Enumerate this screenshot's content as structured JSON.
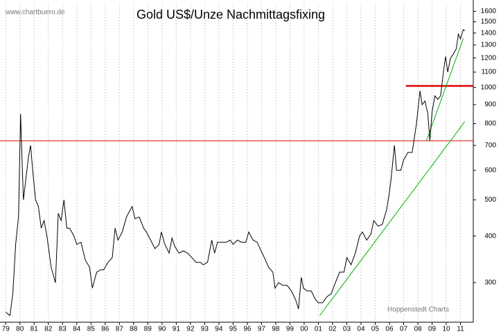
{
  "chart_data": {
    "type": "line",
    "title": "Gold US$/Unze Nachmittagsfixing",
    "source": "www.chartbuero.de",
    "credit": "Hoppenstedt Charts",
    "log_scale": true,
    "grid": true,
    "color": "#000000",
    "x": [
      1979.0,
      1979.3,
      1979.5,
      1979.7,
      1979.9,
      1980.05,
      1980.15,
      1980.25,
      1980.4,
      1980.6,
      1980.75,
      1980.9,
      1981.1,
      1981.3,
      1981.5,
      1981.7,
      1981.9,
      1982.2,
      1982.5,
      1982.7,
      1982.9,
      1983.1,
      1983.3,
      1983.5,
      1983.8,
      1984.0,
      1984.3,
      1984.6,
      1984.9,
      1985.1,
      1985.4,
      1985.7,
      1985.9,
      1986.2,
      1986.5,
      1986.7,
      1986.9,
      1987.2,
      1987.5,
      1987.9,
      1988.1,
      1988.4,
      1988.7,
      1988.9,
      1989.2,
      1989.5,
      1989.8,
      1989.95,
      1990.2,
      1990.5,
      1990.7,
      1990.9,
      1991.2,
      1991.5,
      1991.8,
      1992.1,
      1992.4,
      1992.7,
      1992.9,
      1993.2,
      1993.5,
      1993.7,
      1993.9,
      1994.2,
      1994.5,
      1994.8,
      1995.0,
      1995.3,
      1995.6,
      1995.9,
      1996.1,
      1996.4,
      1996.7,
      1996.9,
      1997.2,
      1997.5,
      1997.8,
      1997.95,
      1998.2,
      1998.5,
      1998.8,
      1999.1,
      1999.4,
      1999.6,
      1999.8,
      1999.95,
      2000.2,
      2000.5,
      2000.8,
      2001.0,
      2001.3,
      2001.6,
      2001.9,
      2002.2,
      2002.5,
      2002.8,
      2003.0,
      2003.3,
      2003.6,
      2003.9,
      2004.1,
      2004.4,
      2004.7,
      2004.9,
      2005.2,
      2005.5,
      2005.8,
      2005.95,
      2006.1,
      2006.35,
      2006.5,
      2006.8,
      2007.0,
      2007.3,
      2007.6,
      2007.9,
      2008.15,
      2008.3,
      2008.5,
      2008.7,
      2008.85,
      2009.0,
      2009.2,
      2009.4,
      2009.6,
      2009.8,
      2009.95,
      2010.1,
      2010.3,
      2010.5,
      2010.7,
      2010.85,
      2011.0,
      2011.2,
      2011.3
    ],
    "values": [
      250,
      245,
      280,
      380,
      450,
      850,
      640,
      500,
      560,
      650,
      700,
      600,
      500,
      480,
      420,
      440,
      400,
      330,
      300,
      460,
      440,
      500,
      420,
      420,
      400,
      380,
      385,
      345,
      330,
      290,
      320,
      325,
      325,
      340,
      350,
      420,
      390,
      410,
      450,
      480,
      445,
      450,
      420,
      410,
      390,
      370,
      380,
      410,
      380,
      360,
      395,
      375,
      360,
      365,
      360,
      350,
      340,
      340,
      335,
      340,
      390,
      360,
      385,
      385,
      385,
      390,
      380,
      390,
      385,
      385,
      410,
      390,
      385,
      370,
      350,
      330,
      320,
      290,
      300,
      295,
      295,
      285,
      270,
      255,
      310,
      290,
      285,
      285,
      270,
      265,
      265,
      275,
      280,
      300,
      320,
      320,
      350,
      335,
      360,
      400,
      410,
      390,
      405,
      440,
      425,
      430,
      470,
      510,
      560,
      700,
      600,
      600,
      640,
      670,
      670,
      800,
      980,
      900,
      920,
      850,
      720,
      860,
      950,
      930,
      950,
      1100,
      1210,
      1100,
      1200,
      1230,
      1270,
      1390,
      1350,
      1430,
      1420
    ],
    "hlines": [
      {
        "value": 720,
        "color": "#e00000",
        "width": 1,
        "from": 1978.6
      },
      {
        "value": 1010,
        "color": "#e00000",
        "width": 2.5,
        "from": 2007.15
      }
    ],
    "trendlines": [
      {
        "color": "#00b000",
        "points": [
          [
            2001.1,
            245
          ],
          [
            2011.3,
            810
          ]
        ]
      },
      {
        "color": "#00b000",
        "points": [
          [
            2008.6,
            720
          ],
          [
            2011.2,
            1355
          ]
        ]
      }
    ],
    "xlim": [
      1978.6,
      2011.9
    ],
    "ylim": [
      235,
      1680
    ],
    "xticks": [
      {
        "value": 1979,
        "label": "79"
      },
      {
        "value": 1980,
        "label": "80"
      },
      {
        "value": 1981,
        "label": "81"
      },
      {
        "value": 1982,
        "label": "82"
      },
      {
        "value": 1983,
        "label": "83"
      },
      {
        "value": 1984,
        "label": "84"
      },
      {
        "value": 1985,
        "label": "85"
      },
      {
        "value": 1986,
        "label": "86"
      },
      {
        "value": 1987,
        "label": "87"
      },
      {
        "value": 1988,
        "label": "88"
      },
      {
        "value": 1989,
        "label": "89"
      },
      {
        "value": 1990,
        "label": "90"
      },
      {
        "value": 1991,
        "label": "91"
      },
      {
        "value": 1992,
        "label": "92"
      },
      {
        "value": 1993,
        "label": "93"
      },
      {
        "value": 1994,
        "label": "94"
      },
      {
        "value": 1995,
        "label": "95"
      },
      {
        "value": 1996,
        "label": "96"
      },
      {
        "value": 1997,
        "label": "97"
      },
      {
        "value": 1998,
        "label": "98"
      },
      {
        "value": 1999,
        "label": "99"
      },
      {
        "value": 2000,
        "label": "00"
      },
      {
        "value": 2001,
        "label": "01"
      },
      {
        "value": 2002,
        "label": "02"
      },
      {
        "value": 2003,
        "label": "03"
      },
      {
        "value": 2004,
        "label": "04"
      },
      {
        "value": 2005,
        "label": "05"
      },
      {
        "value": 2006,
        "label": "06"
      },
      {
        "value": 2007,
        "label": "07"
      },
      {
        "value": 2008,
        "label": "08"
      },
      {
        "value": 2009,
        "label": "09"
      },
      {
        "value": 2010,
        "label": "10"
      },
      {
        "value": 2011,
        "label": "11"
      }
    ],
    "yticks": [
      300,
      400,
      500,
      600,
      700,
      800,
      900,
      1000,
      1100,
      1200,
      1300,
      1400,
      1500,
      1600
    ]
  }
}
